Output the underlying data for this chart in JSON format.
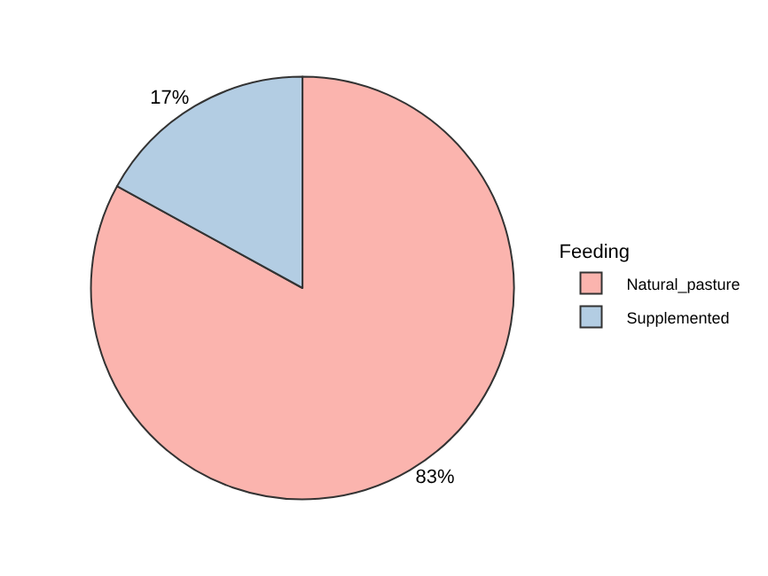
{
  "chart_data": {
    "type": "pie",
    "legend_title": "Feeding",
    "categories": [
      "Natural_pasture",
      "Supplemented"
    ],
    "values": [
      83,
      17
    ],
    "value_labels": [
      "83%",
      "17%"
    ],
    "colors": [
      "#fbb4ae",
      "#b3cde3"
    ],
    "legend": "right"
  }
}
